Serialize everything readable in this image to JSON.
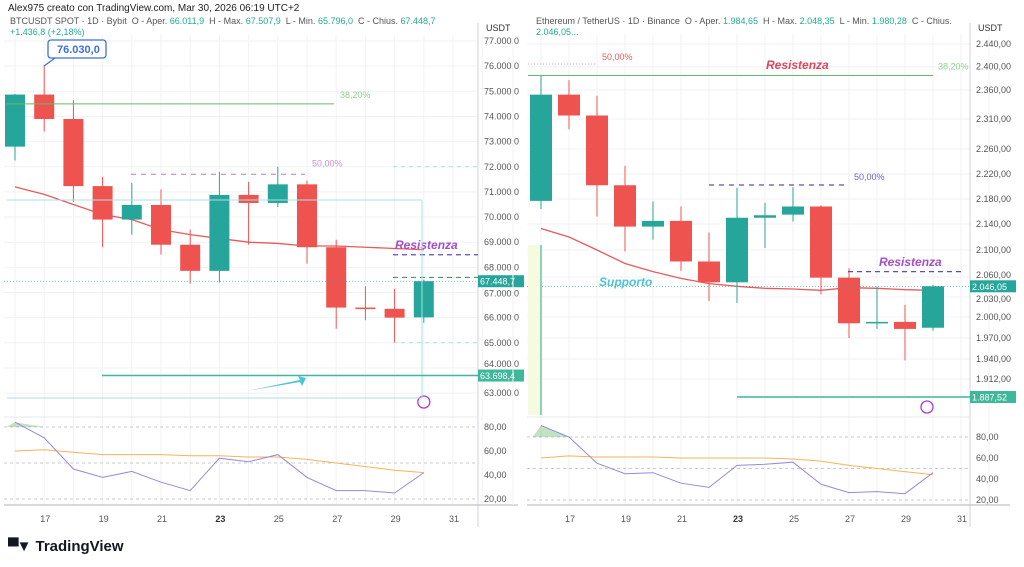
{
  "header": {
    "credit": "Alex975 creato con TradingView.com, Mar 30, 2026 06:19 UTC+2"
  },
  "footer": {
    "brand": "TradingView"
  },
  "colors": {
    "up": "#26a69a",
    "down": "#ef5350",
    "ma": "#e85a5a",
    "rsi": "#9c88d6",
    "rsi_ma": "#f5b45a",
    "fib382": "#66bb6a",
    "fib50": "#9c5fd0",
    "support": "#4dc3d6",
    "level": "#3fb79a"
  },
  "chart_data": [
    {
      "type": "candlestick",
      "title": "BTCUSDT SPOT · 1D · Bybit",
      "legend": {
        "open_label": "O - Aper.",
        "open": "66.011,9",
        "high_label": "H - Max.",
        "high": "67.507,9",
        "low_label": "L - Min.",
        "low": "65.796,0",
        "close_label": "C - Chius.",
        "close": "67.448,7",
        "change": "+1.436,8 (+2,18%)"
      },
      "currency": "USDT",
      "x_ticks": [
        "17",
        "19",
        "21",
        "23",
        "25",
        "27",
        "29",
        "31"
      ],
      "y_ticks": [
        "77.000,0",
        "76.000,0",
        "75.000,0",
        "74.000,0",
        "73.000,0",
        "72.000,0",
        "71.000,0",
        "70.000,0",
        "69.000,0",
        "68.000,0",
        "67.000,0",
        "66.000,0",
        "65.000,0",
        "64.000,0",
        "63.000,0"
      ],
      "ylim": [
        62800,
        77000
      ],
      "days": [
        16,
        17,
        18,
        19,
        20,
        21,
        22,
        23,
        24,
        25,
        26,
        27,
        28,
        29,
        30
      ],
      "ohlc": [
        [
          72800,
          74900,
          72250,
          74870
        ],
        [
          74870,
          76030,
          73400,
          73900
        ],
        [
          73900,
          74650,
          70600,
          71230
        ],
        [
          71230,
          71600,
          68800,
          69900
        ],
        [
          69900,
          71350,
          69300,
          70480
        ],
        [
          70480,
          71100,
          68500,
          68900
        ],
        [
          68900,
          69500,
          67350,
          67860
        ],
        [
          67860,
          71800,
          67400,
          70880
        ],
        [
          70880,
          71400,
          68900,
          70560
        ],
        [
          70560,
          72000,
          70400,
          71300
        ],
        [
          71300,
          71450,
          68150,
          68800
        ],
        [
          68800,
          69100,
          65560,
          66400
        ],
        [
          66400,
          67250,
          65900,
          66350
        ],
        [
          66350,
          67150,
          65000,
          66000
        ],
        [
          66011.9,
          67507.9,
          65796,
          67448.7
        ]
      ],
      "ma": [
        71200,
        70900,
        70500,
        70100,
        69900,
        69500,
        69300,
        69150,
        69000,
        68950,
        68850,
        68850,
        68800,
        68750,
        68700
      ],
      "last_price_label": "67.448,7",
      "support_level": 63698.4,
      "support_label": "63.698,4",
      "annotations": {
        "high_callout": "76.030,0",
        "fib_382": "38,20%",
        "fib_382_price": 74500,
        "fib_50": "50,00%",
        "fib_50_price": 71700,
        "resistance": "Resistenza",
        "resistance_price": 68500
      },
      "rsi": {
        "y_ticks": [
          "80,00",
          "60,00",
          "40,00",
          "20,00"
        ],
        "values": [
          84,
          71,
          45,
          38,
          43,
          34,
          27,
          54,
          51,
          57,
          38,
          27,
          27,
          25,
          42
        ],
        "ma": [
          60,
          61,
          59,
          57,
          57,
          57,
          56,
          56,
          55,
          55,
          53,
          50,
          47,
          44,
          42
        ]
      }
    },
    {
      "type": "candlestick",
      "title": "Ethereum / TetherUS · 1D · Binance",
      "legend": {
        "open_label": "O - Aper.",
        "open": "1.984,65",
        "high_label": "H - Max.",
        "high": "2.048,35",
        "low_label": "L - Min.",
        "low": "1.980,28",
        "close_label": "C - Chius.",
        "close": "2.046,05..."
      },
      "currency": "USDT",
      "x_ticks": [
        "17",
        "19",
        "21",
        "23",
        "25",
        "27",
        "29",
        "31"
      ],
      "y_ticks": [
        "2.440,00",
        "2.400,00",
        "2.360,00",
        "2.310,00",
        "2.260,00",
        "2.220,00",
        "2.180,00",
        "2.140,00",
        "2.100,00",
        "2.060,00",
        "2.030,00",
        "2.000,00",
        "1.970,00",
        "1.940,00",
        "1.912,00"
      ],
      "days": [
        16,
        17,
        18,
        19,
        20,
        21,
        22,
        23,
        24,
        25,
        26,
        27,
        28,
        29,
        30
      ],
      "ohlc": [
        [
          2177,
          2386,
          2164,
          2352
        ],
        [
          2352,
          2377,
          2293,
          2316
        ],
        [
          2316,
          2350,
          2152,
          2202
        ],
        [
          2202,
          2233,
          2098,
          2136
        ],
        [
          2136,
          2176,
          2116,
          2145
        ],
        [
          2145,
          2168,
          2069,
          2083
        ],
        [
          2083,
          2127,
          2024,
          2052
        ],
        [
          2052,
          2198,
          2021,
          2150
        ],
        [
          2150,
          2174,
          2103,
          2154
        ],
        [
          2155,
          2199,
          2144,
          2168
        ],
        [
          2168,
          2170,
          2034,
          2059
        ],
        [
          2059,
          2073,
          1970,
          1991
        ],
        [
          1991,
          2046,
          1983,
          1993
        ],
        [
          1993,
          2018,
          1938,
          1983
        ],
        [
          1984.65,
          2048.35,
          1980.28,
          2046.05
        ]
      ],
      "ma": [
        2133,
        2120,
        2100,
        2080,
        2068,
        2058,
        2050,
        2046,
        2043,
        2042,
        2040,
        2044,
        2043,
        2041,
        2040
      ],
      "last_price_label": "2.046,05",
      "support_level": 1887.52,
      "support_label": "1.887,52",
      "annotations": {
        "top_fib_50": "50,00%",
        "resistance_top": "Resistenza",
        "fib_382": "38,20%",
        "fib_382_price": 2385,
        "fib_50": "50,00%",
        "fib_50_price": 2205,
        "support": "Supporto",
        "resistance": "Resistenza",
        "resistance_price": 2068
      },
      "rsi": {
        "y_ticks": [
          "80,00",
          "60,00",
          "40,00",
          "20,00"
        ],
        "values": [
          91,
          80,
          55,
          45,
          46,
          36,
          32,
          53,
          54,
          56,
          35,
          27,
          28,
          26,
          46
        ],
        "ma": [
          60,
          62,
          61,
          61,
          61,
          60,
          60,
          60,
          60,
          59,
          57,
          53,
          50,
          47,
          44
        ]
      }
    }
  ]
}
